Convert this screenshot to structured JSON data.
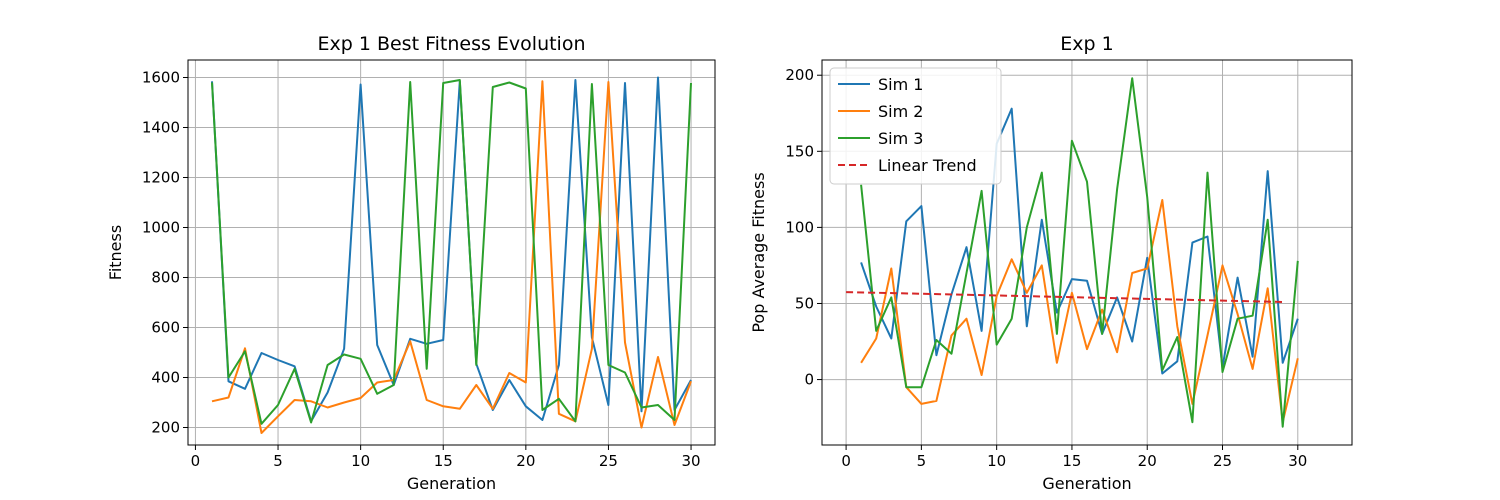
{
  "chart_data": [
    {
      "type": "line",
      "title": "Exp 1 Best Fitness Evolution",
      "xlabel": "Generation",
      "ylabel": "Fitness",
      "xlim": [
        -0.45,
        31.45
      ],
      "ylim": [
        130,
        1670
      ],
      "xticks": [
        0,
        5,
        10,
        15,
        20,
        25,
        30
      ],
      "yticks": [
        200,
        400,
        600,
        800,
        1000,
        1200,
        1400,
        1600
      ],
      "grid": true,
      "legend": null,
      "x": [
        1,
        2,
        3,
        4,
        5,
        6,
        7,
        8,
        9,
        10,
        11,
        12,
        13,
        14,
        15,
        16,
        17,
        18,
        19,
        20,
        21,
        22,
        23,
        24,
        25,
        26,
        27,
        28,
        29,
        30
      ],
      "series": [
        {
          "color": "#1f77b4",
          "values": [
            1585,
            385,
            355,
            498,
            470,
            445,
            225,
            340,
            515,
            1572,
            530,
            370,
            555,
            535,
            550,
            1585,
            455,
            270,
            390,
            285,
            230,
            450,
            1590,
            560,
            290,
            1578,
            265,
            1600,
            270,
            390
          ]
        },
        {
          "color": "#ff7f0e",
          "values": [
            305,
            320,
            517,
            178,
            245,
            310,
            305,
            280,
            300,
            318,
            380,
            390,
            545,
            310,
            285,
            275,
            370,
            275,
            418,
            380,
            1585,
            255,
            225,
            515,
            1582,
            540,
            200,
            482,
            210,
            385
          ]
        },
        {
          "color": "#2ca02c",
          "values": [
            1580,
            400,
            505,
            215,
            290,
            435,
            220,
            450,
            492,
            475,
            335,
            370,
            1582,
            435,
            1578,
            1590,
            450,
            1562,
            1580,
            1556,
            270,
            315,
            225,
            1574,
            450,
            420,
            280,
            290,
            230,
            1578
          ]
        }
      ]
    },
    {
      "type": "line",
      "title": "Exp 1",
      "xlabel": "Generation",
      "ylabel": "Pop Average Fitness",
      "xlim": [
        -1.6,
        33.6
      ],
      "ylim": [
        -43,
        210
      ],
      "xticks": [
        0,
        5,
        10,
        15,
        20,
        25,
        30
      ],
      "yticks": [
        0,
        50,
        100,
        150,
        200
      ],
      "grid": true,
      "legend": "top-left",
      "x": [
        1,
        2,
        3,
        4,
        5,
        6,
        7,
        8,
        9,
        10,
        11,
        12,
        13,
        14,
        15,
        16,
        17,
        18,
        19,
        20,
        21,
        22,
        23,
        24,
        25,
        26,
        27,
        28,
        29,
        30
      ],
      "series": [
        {
          "name": "Sim 1",
          "color": "#1f77b4",
          "values": [
            77,
            48,
            27,
            104,
            114,
            16,
            56,
            87,
            32,
            155,
            178,
            35,
            105,
            44,
            66,
            65,
            30,
            54,
            25,
            80,
            4,
            12,
            90,
            94,
            8,
            67,
            15,
            137,
            11,
            40
          ]
        },
        {
          "name": "Sim 2",
          "color": "#ff7f0e",
          "values": [
            11,
            27,
            73,
            -5,
            -16,
            -14,
            29,
            40,
            3,
            55,
            79,
            57,
            75,
            11,
            57,
            20,
            46,
            18,
            70,
            73,
            118,
            35,
            -16,
            29,
            75,
            43,
            7,
            60,
            -28,
            14
          ]
        },
        {
          "name": "Sim 3",
          "color": "#2ca02c",
          "values": [
            128,
            32,
            54,
            -5,
            -5,
            26,
            17,
            70,
            124,
            23,
            40,
            100,
            136,
            30,
            157,
            130,
            30,
            125,
            198,
            120,
            6,
            28,
            -28,
            136,
            5,
            40,
            42,
            105,
            -31,
            78
          ]
        }
      ],
      "trend": {
        "name": "Linear Trend",
        "color": "#d62728",
        "x": [
          0,
          29
        ],
        "values": [
          57.5,
          51.0
        ]
      }
    }
  ]
}
